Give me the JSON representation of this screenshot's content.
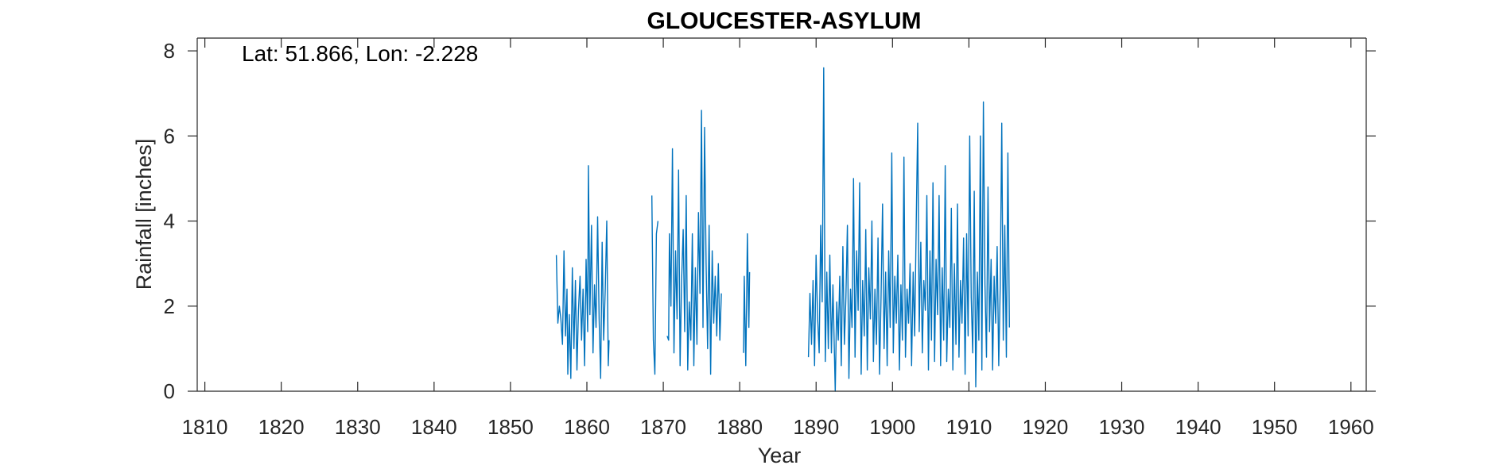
{
  "chart_data": {
    "type": "line",
    "title": "GLOUCESTER-ASYLUM",
    "annotation": "Lat: 51.866, Lon: -2.228",
    "xlabel": "Year",
    "ylabel": "Rainfall [inches]",
    "xlim": [
      1809,
      1962
    ],
    "ylim": [
      0,
      8.3
    ],
    "xticks": [
      1810,
      1820,
      1830,
      1840,
      1850,
      1860,
      1870,
      1880,
      1890,
      1900,
      1910,
      1920,
      1930,
      1940,
      1950,
      1960
    ],
    "yticks": [
      0,
      2,
      4,
      6,
      8
    ],
    "grid": false,
    "color": "#0072BD",
    "series": [
      {
        "values": [
          [
            [
              1856.0,
              3.2
            ],
            [
              1856.2,
              1.6
            ],
            [
              1856.4,
              2.0
            ],
            [
              1856.6,
              1.7
            ],
            [
              1856.8,
              1.1
            ],
            [
              1857.0,
              3.3
            ],
            [
              1857.2,
              1.3
            ],
            [
              1857.4,
              2.4
            ],
            [
              1857.5,
              0.4
            ],
            [
              1857.7,
              1.8
            ],
            [
              1857.9,
              0.3
            ],
            [
              1858.1,
              2.9
            ],
            [
              1858.3,
              1.0
            ],
            [
              1858.5,
              2.6
            ],
            [
              1858.7,
              0.5
            ],
            [
              1858.9,
              1.9
            ],
            [
              1859.1,
              2.7
            ],
            [
              1859.3,
              1.2
            ],
            [
              1859.5,
              2.4
            ],
            [
              1859.7,
              0.6
            ],
            [
              1859.9,
              3.1
            ],
            [
              1860.1,
              1.4
            ],
            [
              1860.2,
              5.3
            ],
            [
              1860.4,
              1.8
            ],
            [
              1860.6,
              3.9
            ],
            [
              1860.8,
              0.9
            ],
            [
              1861.0,
              2.5
            ],
            [
              1861.2,
              1.5
            ],
            [
              1861.4,
              4.1
            ],
            [
              1861.6,
              1.7
            ],
            [
              1861.8,
              0.3
            ],
            [
              1862.0,
              3.5
            ],
            [
              1862.2,
              1.2
            ],
            [
              1862.4,
              2.4
            ],
            [
              1862.6,
              4.0
            ],
            [
              1862.8,
              0.6
            ],
            [
              1862.9,
              1.2
            ]
          ],
          [
            [
              1868.5,
              4.6
            ],
            [
              1868.7,
              1.2
            ],
            [
              1868.9,
              0.4
            ],
            [
              1869.1,
              3.7
            ],
            [
              1869.3,
              4.0
            ]
          ],
          [
            [
              1870.5,
              1.3
            ],
            [
              1870.7,
              1.2
            ],
            [
              1870.8,
              3.7
            ],
            [
              1871.0,
              2.0
            ],
            [
              1871.2,
              5.7
            ],
            [
              1871.4,
              0.9
            ],
            [
              1871.6,
              3.3
            ],
            [
              1871.8,
              1.7
            ],
            [
              1872.0,
              5.2
            ],
            [
              1872.2,
              0.6
            ],
            [
              1872.4,
              2.6
            ],
            [
              1872.6,
              3.8
            ],
            [
              1872.8,
              1.4
            ],
            [
              1873.0,
              4.6
            ],
            [
              1873.2,
              0.5
            ],
            [
              1873.4,
              2.1
            ],
            [
              1873.6,
              1.2
            ],
            [
              1873.8,
              3.7
            ],
            [
              1874.0,
              0.6
            ],
            [
              1874.2,
              2.9
            ],
            [
              1874.4,
              1.1
            ],
            [
              1874.6,
              4.2
            ],
            [
              1874.8,
              2.3
            ],
            [
              1875.0,
              6.6
            ],
            [
              1875.2,
              1.5
            ],
            [
              1875.4,
              6.2
            ],
            [
              1875.6,
              3.0
            ],
            [
              1875.8,
              1.0
            ],
            [
              1876.0,
              3.9
            ],
            [
              1876.2,
              0.4
            ],
            [
              1876.4,
              3.3
            ],
            [
              1876.6,
              1.6
            ],
            [
              1876.8,
              2.7
            ],
            [
              1877.0,
              1.3
            ],
            [
              1877.2,
              3.0
            ],
            [
              1877.4,
              1.2
            ],
            [
              1877.6,
              2.3
            ]
          ],
          [
            [
              1880.5,
              0.9
            ],
            [
              1880.6,
              2.7
            ],
            [
              1880.8,
              0.6
            ],
            [
              1880.9,
              2.0
            ],
            [
              1881.0,
              3.7
            ],
            [
              1881.2,
              1.5
            ],
            [
              1881.3,
              2.8
            ]
          ],
          [
            [
              1889.0,
              0.8
            ],
            [
              1889.2,
              2.3
            ],
            [
              1889.4,
              1.1
            ],
            [
              1889.6,
              2.6
            ],
            [
              1889.8,
              0.6
            ],
            [
              1890.0,
              3.2
            ],
            [
              1890.2,
              1.7
            ],
            [
              1890.4,
              0.9
            ],
            [
              1890.6,
              3.9
            ],
            [
              1890.8,
              2.1
            ],
            [
              1891.0,
              7.6
            ],
            [
              1891.2,
              0.7
            ],
            [
              1891.4,
              2.8
            ],
            [
              1891.6,
              1.0
            ],
            [
              1891.8,
              3.2
            ],
            [
              1892.0,
              0.9
            ],
            [
              1892.2,
              2.5
            ],
            [
              1892.5,
              0.0
            ],
            [
              1892.7,
              2.1
            ],
            [
              1892.9,
              1.2
            ],
            [
              1893.1,
              2.7
            ],
            [
              1893.3,
              0.6
            ],
            [
              1893.5,
              3.4
            ],
            [
              1893.7,
              1.1
            ],
            [
              1893.9,
              2.2
            ],
            [
              1894.1,
              3.9
            ],
            [
              1894.3,
              0.3
            ],
            [
              1894.5,
              2.4
            ],
            [
              1894.7,
              1.5
            ],
            [
              1894.9,
              5.0
            ],
            [
              1895.1,
              0.8
            ],
            [
              1895.3,
              3.3
            ],
            [
              1895.5,
              1.9
            ],
            [
              1895.7,
              4.9
            ],
            [
              1895.9,
              0.4
            ],
            [
              1896.1,
              2.6
            ],
            [
              1896.3,
              1.3
            ],
            [
              1896.5,
              3.8
            ],
            [
              1896.7,
              0.5
            ],
            [
              1896.9,
              2.9
            ],
            [
              1897.1,
              1.7
            ],
            [
              1897.3,
              4.0
            ],
            [
              1897.5,
              0.7
            ],
            [
              1897.7,
              2.4
            ],
            [
              1897.9,
              1.1
            ],
            [
              1898.1,
              3.6
            ],
            [
              1898.3,
              0.4
            ],
            [
              1898.5,
              2.2
            ],
            [
              1898.7,
              4.4
            ],
            [
              1898.9,
              1.0
            ],
            [
              1899.1,
              2.8
            ],
            [
              1899.3,
              0.6
            ],
            [
              1899.5,
              3.3
            ],
            [
              1899.7,
              1.5
            ],
            [
              1899.9,
              5.6
            ],
            [
              1900.1,
              0.9
            ],
            [
              1900.3,
              2.7
            ],
            [
              1900.5,
              1.6
            ],
            [
              1900.7,
              3.2
            ],
            [
              1900.9,
              0.5
            ],
            [
              1901.1,
              2.5
            ],
            [
              1901.3,
              1.2
            ],
            [
              1901.5,
              5.5
            ],
            [
              1901.7,
              0.8
            ],
            [
              1901.9,
              2.4
            ],
            [
              1902.1,
              1.6
            ],
            [
              1902.3,
              3.0
            ],
            [
              1902.5,
              0.6
            ],
            [
              1902.7,
              2.8
            ],
            [
              1902.9,
              1.3
            ],
            [
              1903.1,
              3.9
            ],
            [
              1903.3,
              6.3
            ],
            [
              1903.5,
              1.4
            ],
            [
              1903.7,
              3.5
            ],
            [
              1903.9,
              0.9
            ],
            [
              1904.1,
              2.6
            ],
            [
              1904.3,
              1.9
            ],
            [
              1904.5,
              4.6
            ],
            [
              1904.7,
              0.5
            ],
            [
              1904.9,
              3.3
            ],
            [
              1905.1,
              1.2
            ],
            [
              1905.3,
              4.9
            ],
            [
              1905.5,
              0.7
            ],
            [
              1905.7,
              3.1
            ],
            [
              1905.9,
              1.8
            ],
            [
              1906.1,
              4.6
            ],
            [
              1906.3,
              0.6
            ],
            [
              1906.5,
              2.9
            ],
            [
              1906.7,
              1.2
            ],
            [
              1906.9,
              5.3
            ],
            [
              1907.1,
              0.7
            ],
            [
              1907.3,
              2.4
            ],
            [
              1907.5,
              1.5
            ],
            [
              1907.7,
              4.3
            ],
            [
              1907.9,
              0.5
            ],
            [
              1908.1,
              3.0
            ],
            [
              1908.3,
              1.1
            ],
            [
              1908.5,
              4.4
            ],
            [
              1908.7,
              0.8
            ],
            [
              1908.9,
              2.6
            ],
            [
              1909.1,
              1.6
            ],
            [
              1909.3,
              3.6
            ],
            [
              1909.5,
              0.4
            ],
            [
              1909.7,
              3.7
            ],
            [
              1909.9,
              1.3
            ],
            [
              1910.1,
              6.0
            ],
            [
              1910.3,
              2.2
            ],
            [
              1910.5,
              0.9
            ],
            [
              1910.7,
              4.7
            ],
            [
              1910.9,
              0.1
            ],
            [
              1911.1,
              2.8
            ],
            [
              1911.3,
              1.2
            ],
            [
              1911.5,
              6.0
            ],
            [
              1911.7,
              0.5
            ],
            [
              1911.9,
              6.8
            ],
            [
              1912.1,
              2.5
            ],
            [
              1912.3,
              0.8
            ],
            [
              1912.5,
              4.8
            ],
            [
              1912.7,
              1.4
            ],
            [
              1912.9,
              3.1
            ],
            [
              1913.1,
              0.5
            ],
            [
              1913.3,
              2.7
            ],
            [
              1913.5,
              1.6
            ],
            [
              1913.7,
              3.4
            ],
            [
              1913.9,
              0.6
            ],
            [
              1914.1,
              2.5
            ],
            [
              1914.3,
              6.3
            ],
            [
              1914.5,
              1.2
            ],
            [
              1914.7,
              3.9
            ],
            [
              1914.9,
              0.8
            ],
            [
              1915.1,
              5.6
            ],
            [
              1915.3,
              1.5
            ]
          ]
        ]
      }
    ]
  }
}
